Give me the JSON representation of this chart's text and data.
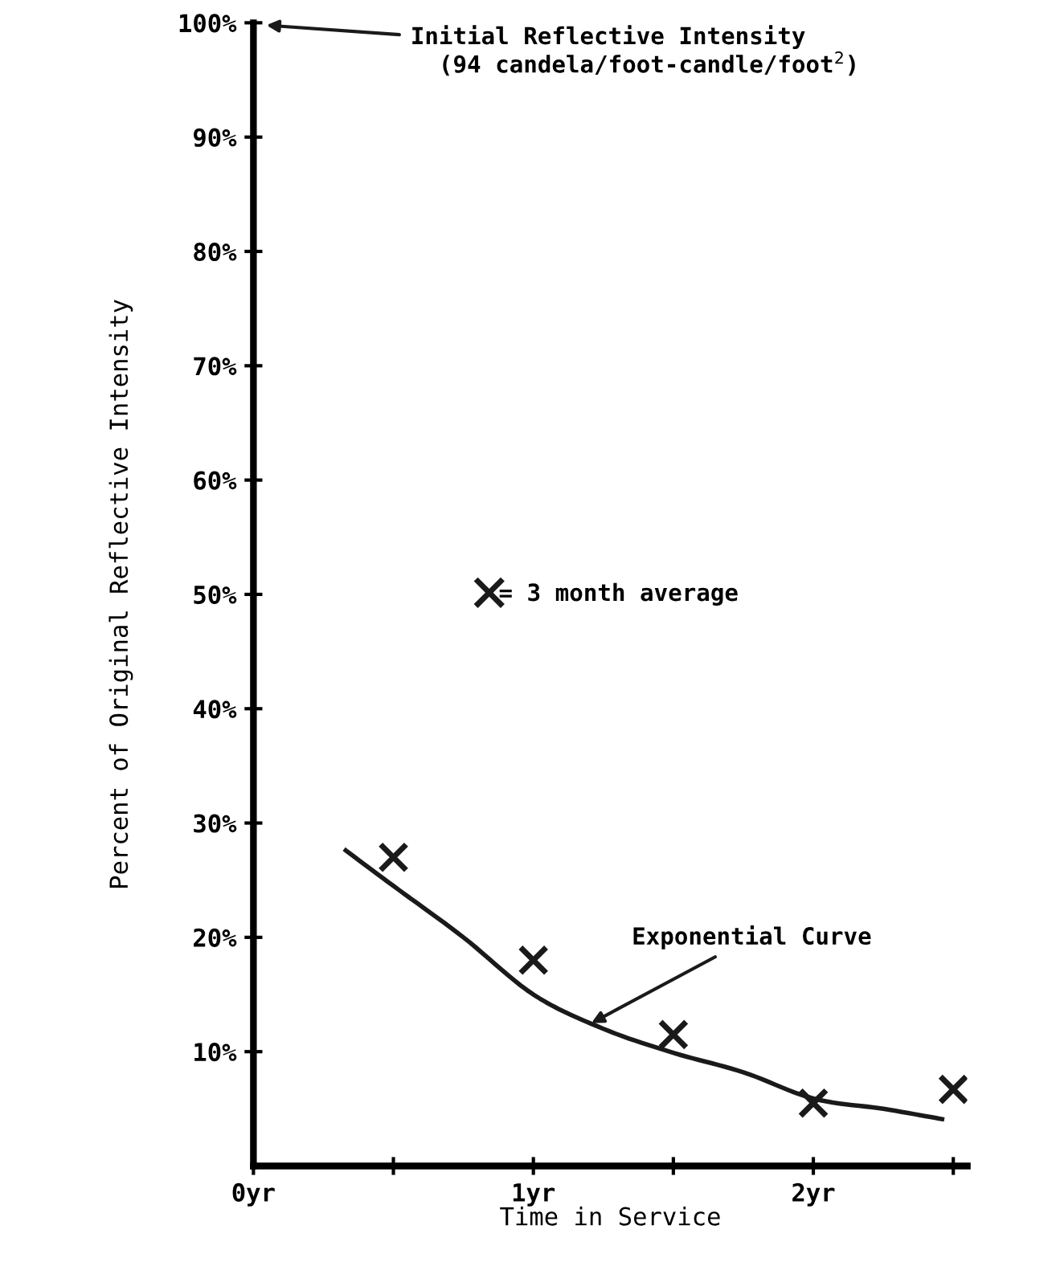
{
  "chart_data": {
    "type": "scatter",
    "xlabel": "Time in Service",
    "ylabel": "Percent of Original Reflective Intensity",
    "xlim": [
      0,
      2.55
    ],
    "ylim": [
      0,
      100
    ],
    "xticks": [
      {
        "value": 0,
        "label": "0yr"
      },
      {
        "value": 0.5,
        "label": null
      },
      {
        "value": 1,
        "label": "1yr"
      },
      {
        "value": 1.5,
        "label": null
      },
      {
        "value": 2,
        "label": "2yr"
      },
      {
        "value": 2.5,
        "label": null
      }
    ],
    "yticks": [
      {
        "value": 10,
        "label": "10%"
      },
      {
        "value": 20,
        "label": "20%"
      },
      {
        "value": 30,
        "label": "30%"
      },
      {
        "value": 40,
        "label": "40%"
      },
      {
        "value": 50,
        "label": "50%"
      },
      {
        "value": 60,
        "label": "60%"
      },
      {
        "value": 70,
        "label": "70%"
      },
      {
        "value": 80,
        "label": "80%"
      },
      {
        "value": 90,
        "label": "90%"
      },
      {
        "value": 100,
        "label": "100%"
      }
    ],
    "marker": "cross",
    "grid": false,
    "legend": "center",
    "series": [
      {
        "name": "= 3 month average",
        "color": "#1a1a1a",
        "x": [
          0.5,
          1,
          1.5,
          2,
          2.5
        ],
        "values": [
          27,
          18,
          11.5,
          5.5,
          6.7
        ]
      },
      {
        "type": "line",
        "color": "#1a1a1a",
        "marker": "none",
        "x": [
          0.33,
          0.5,
          0.75,
          1.0,
          1.25,
          1.5,
          1.75,
          2.0,
          2.25,
          2.46
        ],
        "values": [
          27.6,
          24.5,
          20,
          15,
          12,
          9.9,
          8.2,
          5.9,
          5,
          4.1
        ]
      }
    ],
    "annotations": [
      "Initial Reflective Intensity\n  (94 candela/foot-candle/foot$^{2}$)",
      {
        "text": "Exponential Curve",
        "x": 1.2,
        "y": 12.4
      }
    ]
  }
}
